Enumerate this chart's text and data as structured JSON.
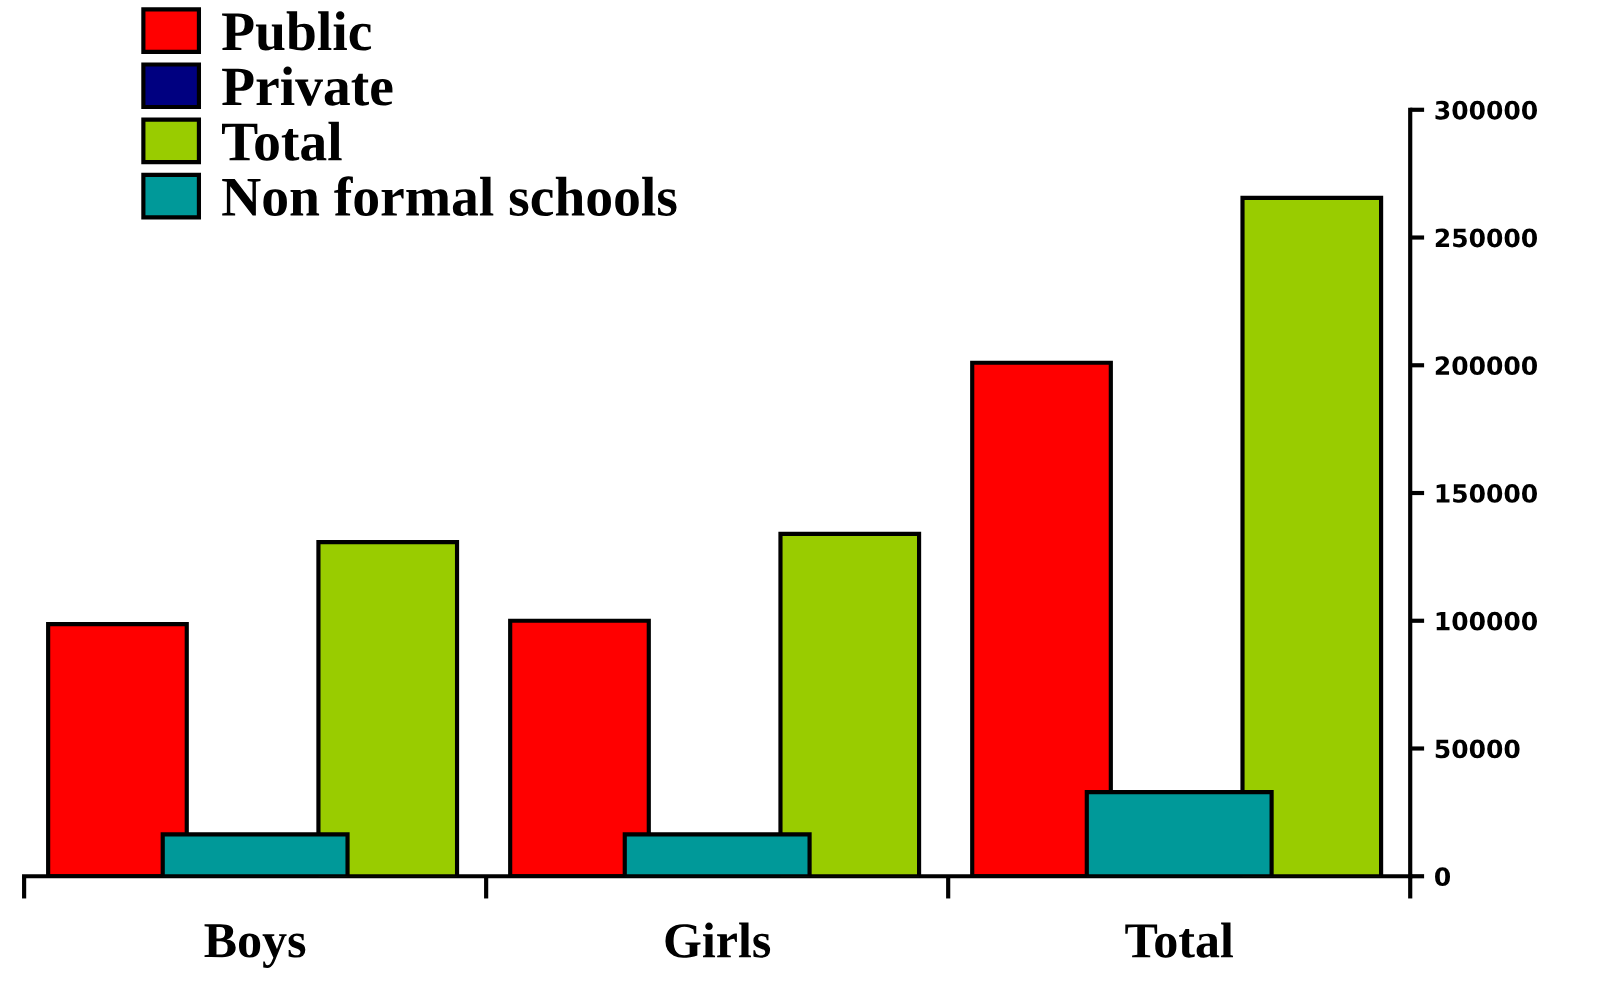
{
  "chart_data": {
    "type": "bar",
    "categories": [
      "Boys",
      "Girls",
      "Total"
    ],
    "series": [
      {
        "name": "Public",
        "color": "#ff0000",
        "values": [
          98700,
          100000,
          201000
        ]
      },
      {
        "name": "Private",
        "color": "#000080",
        "values": [
          null,
          null,
          null
        ]
      },
      {
        "name": "Total",
        "color": "#99cc00",
        "values": [
          130800,
          134000,
          265500
        ]
      },
      {
        "name": "Non formal schools",
        "color": "#009999",
        "values": [
          16400,
          16400,
          32900
        ]
      }
    ],
    "ylim": [
      0,
      300000
    ],
    "yticks": [
      0,
      50000,
      100000,
      150000,
      200000,
      250000,
      300000
    ],
    "grid": false,
    "legend": "top left"
  }
}
